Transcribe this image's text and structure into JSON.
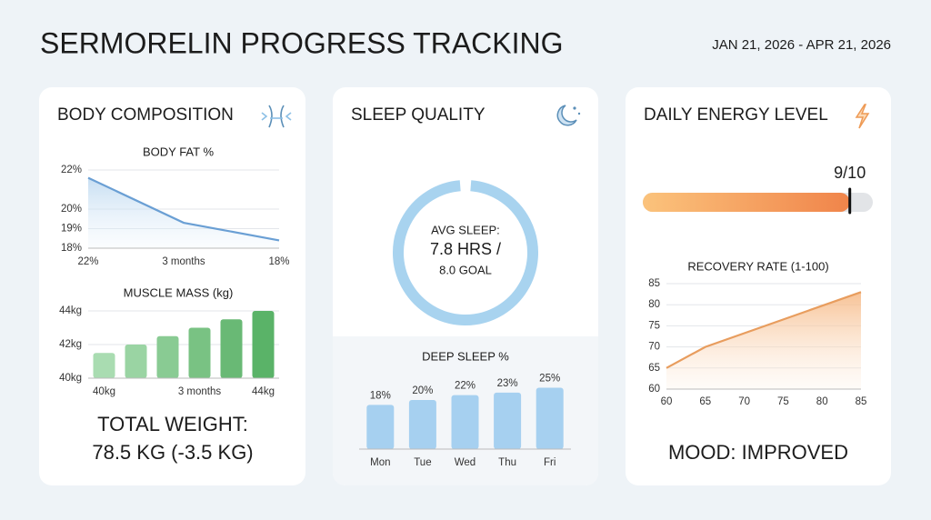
{
  "header": {
    "title": "SERMORELIN PROGRESS TRACKING",
    "date_range": "JAN 21, 2026 - APR 21, 2026"
  },
  "cards": {
    "body": {
      "title": "BODY COMPOSITION",
      "total_weight_label": "TOTAL WEIGHT:",
      "total_weight": "78.5 KG (-3.5 KG)"
    },
    "sleep": {
      "title": "SLEEP QUALITY"
    },
    "energy": {
      "title": "DAILY ENERGY LEVEL",
      "mood": "MOOD: IMPROVED"
    }
  },
  "chart_data": [
    {
      "type": "line",
      "title": "BODY FAT %",
      "categories": [
        "22%",
        "3 months",
        "18%"
      ],
      "values": [
        21.6,
        19.3,
        18.4
      ],
      "color": "#6a9fd4",
      "ylim": [
        18,
        22
      ],
      "yticks": [
        {
          "value": 22,
          "label": "22%"
        },
        {
          "value": 20,
          "label": "20%"
        },
        {
          "value": 19,
          "label": "19%"
        },
        {
          "value": 18,
          "label": "18%"
        }
      ],
      "grid": true
    },
    {
      "type": "bar",
      "title": "MUSCLE MASS (kg)",
      "categories": [
        "40kg",
        null,
        null,
        "3 months",
        null,
        "44kg"
      ],
      "values": [
        41.5,
        42,
        42.5,
        43,
        43.5,
        44
      ],
      "colors": [
        "#a9dcb1",
        "#9ad4a3",
        "#89cb93",
        "#79c283",
        "#69b975",
        "#5ab368"
      ],
      "ylim": [
        40,
        44
      ],
      "yticks": [
        {
          "value": 44,
          "label": "44kg"
        },
        {
          "value": 42,
          "label": "42kg"
        },
        {
          "value": 40,
          "label": "40kg"
        }
      ],
      "grid": true
    },
    {
      "type": "gauge",
      "label": "AVG SLEEP:",
      "value": 7.8,
      "value_label": "7.8 HRS /",
      "max": 8.0,
      "max_label": "8.0 GOAL",
      "color": "#a8d3ef"
    },
    {
      "type": "bar",
      "title": "DEEP SLEEP %",
      "categories": [
        "Mon",
        "Tue",
        "Wed",
        "Thu",
        "Fri"
      ],
      "values": [
        18,
        20,
        22,
        23,
        25
      ],
      "value_labels": [
        "18%",
        "20%",
        "22%",
        "23%",
        "25%"
      ],
      "color": "#a6d0f0"
    },
    {
      "type": "progress",
      "value": 9,
      "max": 10,
      "value_label": "9/10",
      "color": "#f0874a"
    },
    {
      "type": "line",
      "title": "RECOVERY RATE (1-100)",
      "x": [
        60,
        65,
        85
      ],
      "values": [
        65,
        70,
        83
      ],
      "color": "#e89d5e",
      "xlim": [
        60,
        85
      ],
      "xticks": [
        60,
        65,
        70,
        75,
        80,
        85
      ],
      "ylim": [
        60,
        85
      ],
      "yticks": [
        60,
        65,
        70,
        75,
        80,
        85
      ],
      "grid": true
    }
  ]
}
